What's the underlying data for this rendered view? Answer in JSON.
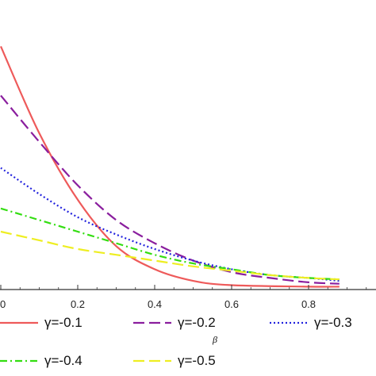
{
  "chart_data": {
    "type": "line",
    "x_ticks": [
      "0",
      "0.2",
      "0.4",
      "0.6",
      "0.8"
    ],
    "x_tick_values": [
      0,
      0.2,
      0.4,
      0.6,
      0.8
    ],
    "xlim": [
      0,
      0.88
    ],
    "grid": false,
    "legend_position": "bottom",
    "stray_label": "β",
    "series": [
      {
        "name": "γ=-0.1",
        "color": "#ee5a5a",
        "dash": "solid",
        "points": [
          [
            0,
            0.84
          ],
          [
            0.1,
            0.54
          ],
          [
            0.2,
            0.31
          ],
          [
            0.3,
            0.15
          ],
          [
            0.4,
            0.07
          ],
          [
            0.5,
            0.03
          ],
          [
            0.6,
            0.015
          ],
          [
            0.8,
            0.01
          ],
          [
            0.88,
            0.01
          ]
        ]
      },
      {
        "name": "γ=-0.2",
        "color": "#8a1e9e",
        "dash": "long-dash",
        "points": [
          [
            0,
            0.67
          ],
          [
            0.1,
            0.51
          ],
          [
            0.2,
            0.36
          ],
          [
            0.3,
            0.24
          ],
          [
            0.4,
            0.16
          ],
          [
            0.5,
            0.1
          ],
          [
            0.6,
            0.06
          ],
          [
            0.7,
            0.04
          ],
          [
            0.8,
            0.025
          ],
          [
            0.88,
            0.02
          ]
        ]
      },
      {
        "name": "γ=-0.3",
        "color": "#2222dd",
        "dash": "dotted",
        "points": [
          [
            0,
            0.42
          ],
          [
            0.1,
            0.33
          ],
          [
            0.2,
            0.25
          ],
          [
            0.3,
            0.19
          ],
          [
            0.4,
            0.14
          ],
          [
            0.5,
            0.1
          ],
          [
            0.6,
            0.07
          ],
          [
            0.7,
            0.05
          ],
          [
            0.8,
            0.04
          ],
          [
            0.88,
            0.03
          ]
        ]
      },
      {
        "name": "γ=-0.4",
        "color": "#33dd11",
        "dash": "dash-dot",
        "points": [
          [
            0,
            0.28
          ],
          [
            0.1,
            0.24
          ],
          [
            0.2,
            0.2
          ],
          [
            0.3,
            0.16
          ],
          [
            0.4,
            0.12
          ],
          [
            0.5,
            0.09
          ],
          [
            0.6,
            0.07
          ],
          [
            0.7,
            0.05
          ],
          [
            0.8,
            0.04
          ],
          [
            0.88,
            0.035
          ]
        ]
      },
      {
        "name": "γ=-0.5",
        "color": "#eeee22",
        "dash": "long-dash",
        "points": [
          [
            0,
            0.2
          ],
          [
            0.1,
            0.17
          ],
          [
            0.2,
            0.14
          ],
          [
            0.3,
            0.12
          ],
          [
            0.4,
            0.1
          ],
          [
            0.5,
            0.08
          ],
          [
            0.6,
            0.065
          ],
          [
            0.7,
            0.05
          ],
          [
            0.8,
            0.04
          ],
          [
            0.88,
            0.035
          ]
        ]
      }
    ]
  }
}
